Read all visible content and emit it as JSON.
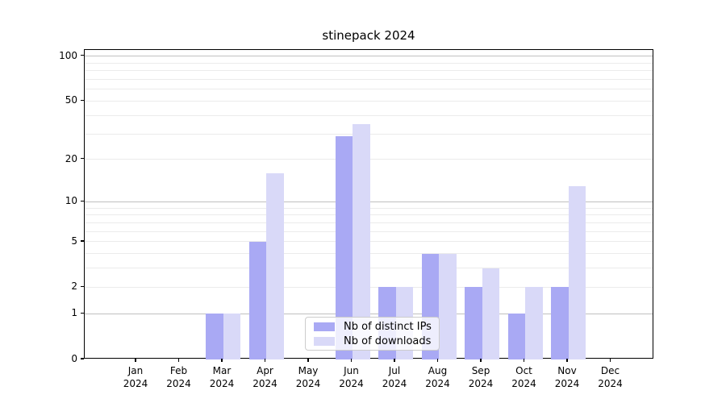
{
  "title": "stinepack 2024",
  "chart_data": {
    "type": "bar",
    "title": "stinepack 2024",
    "categories": [
      "Jan 2024",
      "Feb 2024",
      "Mar 2024",
      "Apr 2024",
      "May 2024",
      "Jun 2024",
      "Jul 2024",
      "Aug 2024",
      "Sep 2024",
      "Oct 2024",
      "Nov 2024",
      "Dec 2024"
    ],
    "series": [
      {
        "name": "Nb of distinct IPs",
        "color": "#a9a9f4",
        "values": [
          0,
          0,
          1,
          5,
          0,
          29,
          2,
          4,
          2,
          1,
          2,
          0
        ]
      },
      {
        "name": "Nb of downloads",
        "color": "#d9d9f8",
        "values": [
          0,
          0,
          1,
          16,
          0,
          35,
          2,
          4,
          3,
          2,
          13,
          0
        ]
      }
    ],
    "yscale": "log1p",
    "ylim": [
      0,
      110
    ],
    "y_tick_labels": [
      0,
      1,
      2,
      5,
      10,
      20,
      50,
      100
    ],
    "y_major_gridlines": [
      1,
      10,
      100
    ],
    "y_minor_gridlines": [
      2,
      3,
      4,
      5,
      6,
      7,
      8,
      9,
      20,
      30,
      40,
      50,
      60,
      70,
      80,
      90
    ],
    "xlabel": "",
    "ylabel": "",
    "grid": true,
    "legend_position": "lower-center-inside"
  },
  "legend": {
    "entries": [
      {
        "label": "Nb of distinct IPs",
        "color": "#a9a9f4"
      },
      {
        "label": "Nb of downloads",
        "color": "#d9d9f8"
      }
    ]
  },
  "colors": {
    "bar_distinct_ips": "#a9a9f4",
    "bar_downloads": "#d9d9f8",
    "gridline_major": "#c0c0c0",
    "gridline_minor": "#ebebeb",
    "axis_spine": "#000000",
    "text": "#000000",
    "legend_border": "#cccccc"
  }
}
